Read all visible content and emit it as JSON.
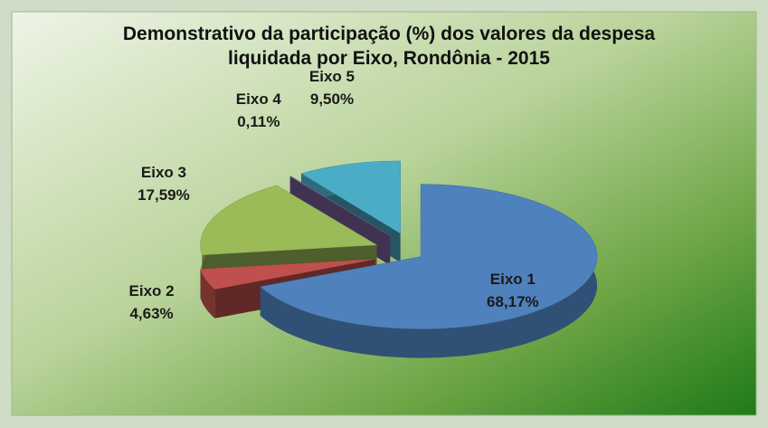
{
  "chart_data": {
    "type": "pie",
    "title": "Demonstrativo da participação (%) dos valores da despesa liquidada por Eixo, Rondônia - 2015",
    "categories": [
      "Eixo 1",
      "Eixo 2",
      "Eixo 3",
      "Eixo 4",
      "Eixo 5"
    ],
    "values": [
      68.17,
      4.63,
      17.59,
      0.11,
      9.5
    ],
    "value_labels": [
      "68,17%",
      "4,63%",
      "17,59%",
      "0,11%",
      "9,50%"
    ],
    "colors": [
      "#4f81bd",
      "#c0504d",
      "#9bbb59",
      "#8064a2",
      "#4bacc6"
    ]
  }
}
